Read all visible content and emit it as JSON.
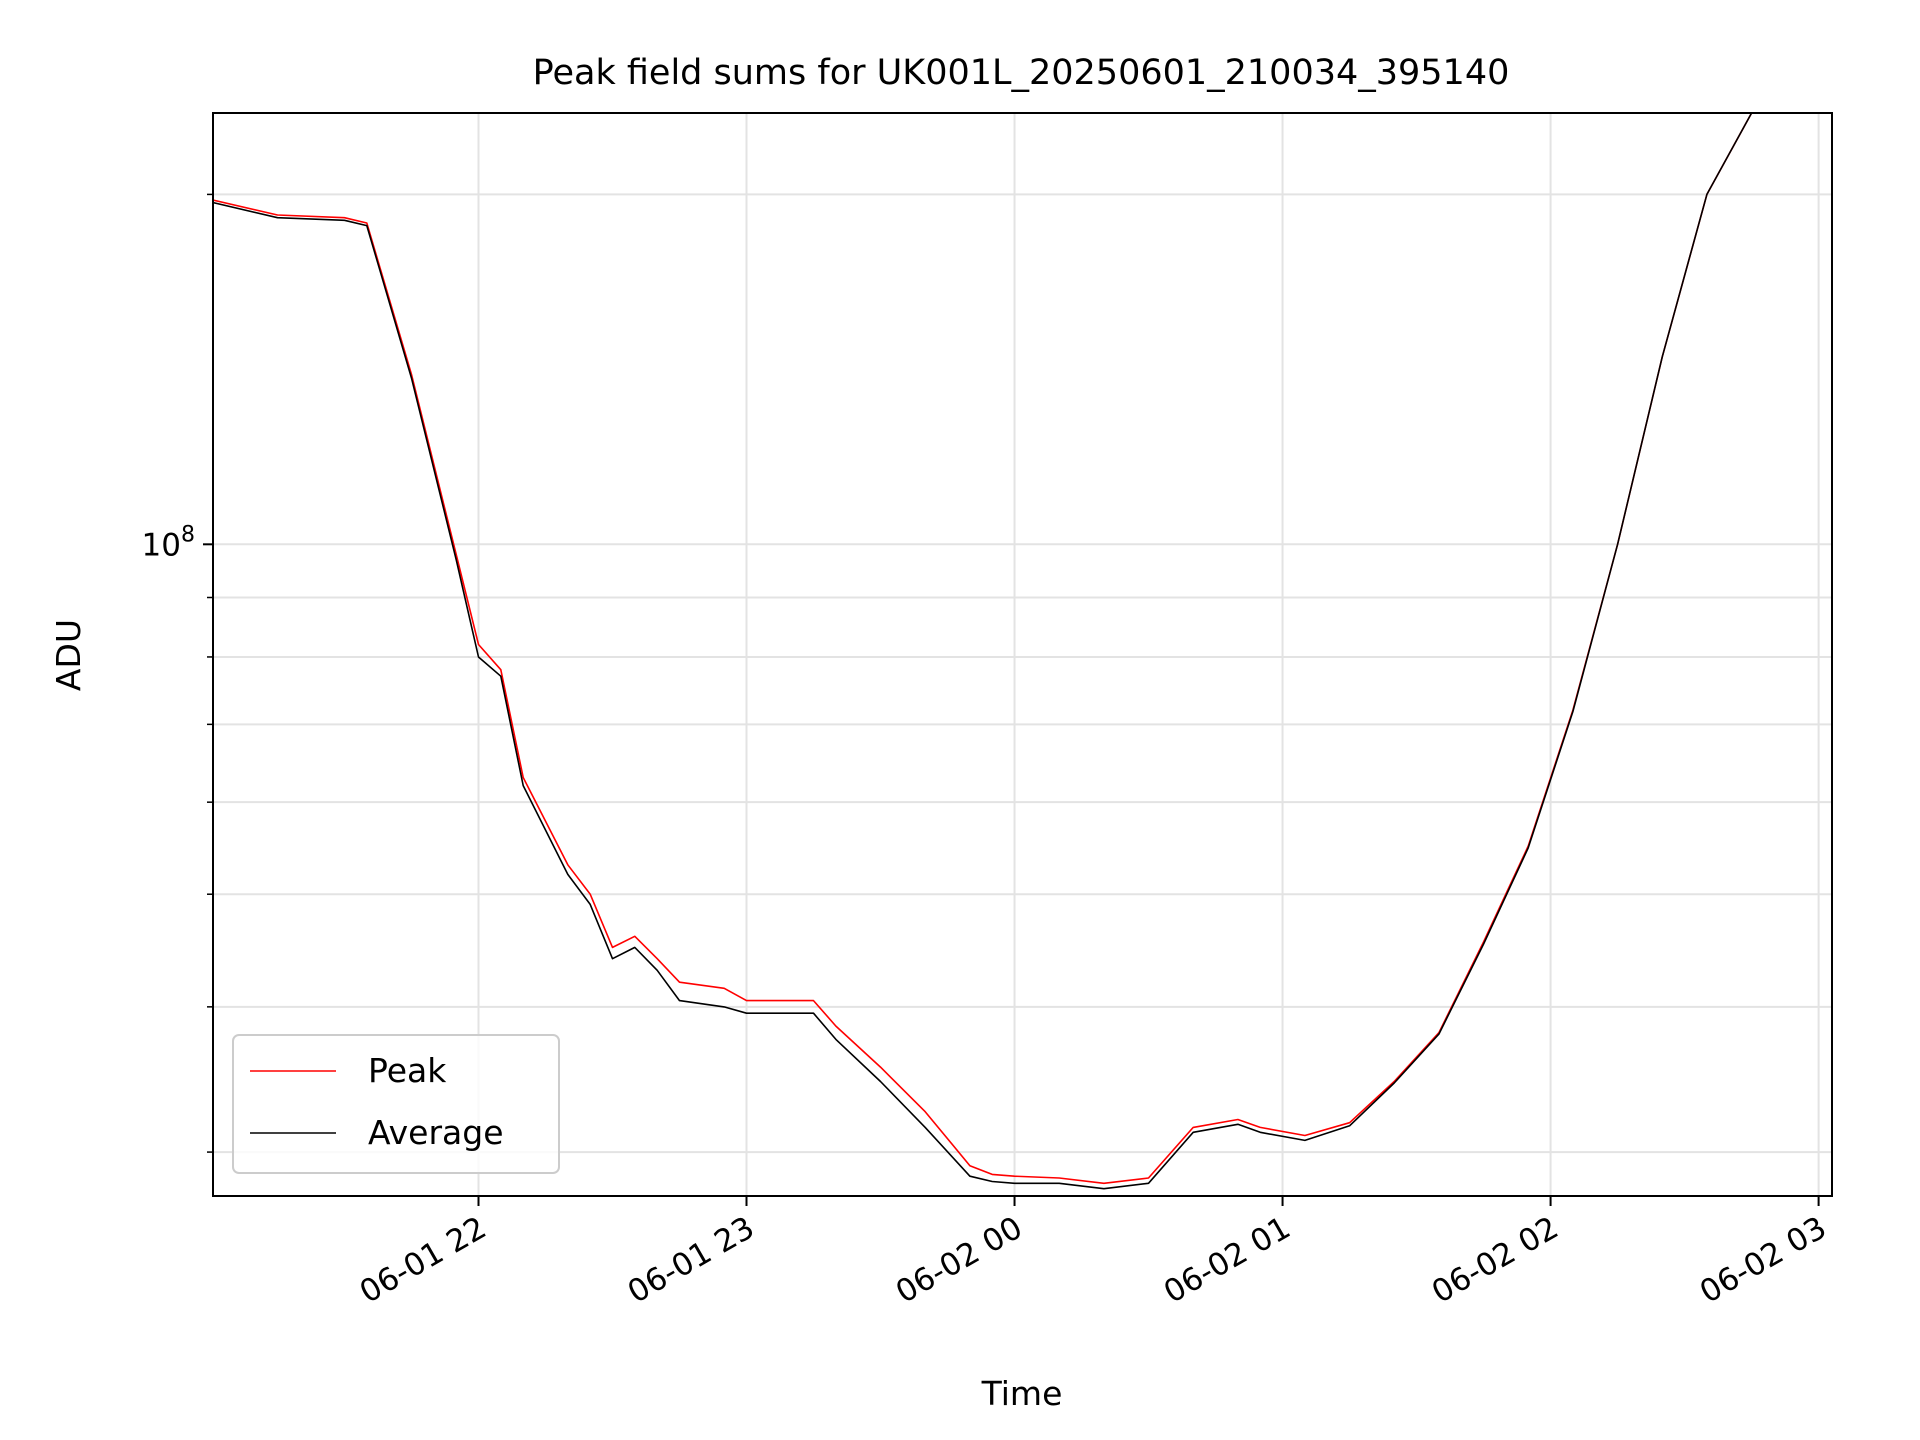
{
  "chart_data": {
    "type": "line",
    "title": "Peak field sums for UK001L_20250601_210034_395140",
    "xlabel": "Time",
    "ylabel": "ADU",
    "y_scale": "log",
    "ylim": [
      27500000,
      235000000
    ],
    "xlim": [
      "2025-06-01 21:00:34",
      "2025-06-02 03:03:00"
    ],
    "x_ticks": [
      "06-01 22",
      "06-01 23",
      "06-02 00",
      "06-02 01",
      "06-02 02",
      "06-02 03"
    ],
    "x_tick_times": [
      "2025-06-01 22:00",
      "2025-06-01 23:00",
      "2025-06-02 00:00",
      "2025-06-02 01:00",
      "2025-06-02 02:00",
      "2025-06-02 03:00"
    ],
    "y_major_tick_label": "10^8",
    "y_major_tick_value": 100000000,
    "y_minor_ticks": [
      30000000,
      40000000,
      50000000,
      60000000,
      70000000,
      80000000,
      90000000,
      200000000
    ],
    "grid": true,
    "legend_position": "lower-left",
    "series": [
      {
        "name": "Peak",
        "color": "#ff0000",
        "x": [
          "2025-06-01 21:00",
          "2025-06-01 21:15",
          "2025-06-01 21:30",
          "2025-06-01 21:35",
          "2025-06-01 21:45",
          "2025-06-01 21:55",
          "2025-06-01 22:00",
          "2025-06-01 22:05",
          "2025-06-01 22:10",
          "2025-06-01 22:20",
          "2025-06-01 22:25",
          "2025-06-01 22:30",
          "2025-06-01 22:35",
          "2025-06-01 22:40",
          "2025-06-01 22:45",
          "2025-06-01 22:55",
          "2025-06-01 23:00",
          "2025-06-01 23:15",
          "2025-06-01 23:20",
          "2025-06-01 23:30",
          "2025-06-01 23:40",
          "2025-06-01 23:50",
          "2025-06-01 23:55",
          "2025-06-02 00:00",
          "2025-06-02 00:10",
          "2025-06-02 00:20",
          "2025-06-02 00:30",
          "2025-06-02 00:40",
          "2025-06-02 00:50",
          "2025-06-02 00:55",
          "2025-06-02 01:05",
          "2025-06-02 01:15",
          "2025-06-02 01:25",
          "2025-06-02 01:35",
          "2025-06-02 01:45",
          "2025-06-02 01:55",
          "2025-06-02 02:05",
          "2025-06-02 02:15",
          "2025-06-02 02:25",
          "2025-06-02 02:35",
          "2025-06-02 02:45",
          "2025-06-02 02:55",
          "2025-06-02 03:02"
        ],
        "values": [
          198000000,
          192000000,
          191000000,
          189000000,
          140000000,
          98000000,
          82000000,
          78000000,
          63000000,
          53000000,
          50000000,
          45000000,
          46000000,
          44000000,
          42000000,
          41500000,
          40500000,
          40500000,
          38500000,
          35500000,
          32500000,
          29200000,
          28700000,
          28600000,
          28500000,
          28200000,
          28500000,
          31500000,
          32000000,
          31500000,
          31000000,
          31800000,
          34500000,
          38000000,
          45500000,
          55000000,
          72000000,
          100000000,
          145000000,
          200000000,
          235000000,
          235000000,
          235000000
        ]
      },
      {
        "name": "Average",
        "color": "#000000",
        "x": [
          "2025-06-01 21:00",
          "2025-06-01 21:15",
          "2025-06-01 21:30",
          "2025-06-01 21:35",
          "2025-06-01 21:45",
          "2025-06-01 21:55",
          "2025-06-01 22:00",
          "2025-06-01 22:05",
          "2025-06-01 22:10",
          "2025-06-01 22:20",
          "2025-06-01 22:25",
          "2025-06-01 22:30",
          "2025-06-01 22:35",
          "2025-06-01 22:40",
          "2025-06-01 22:45",
          "2025-06-01 22:55",
          "2025-06-01 23:00",
          "2025-06-01 23:15",
          "2025-06-01 23:20",
          "2025-06-01 23:30",
          "2025-06-01 23:40",
          "2025-06-01 23:50",
          "2025-06-01 23:55",
          "2025-06-02 00:00",
          "2025-06-02 00:10",
          "2025-06-02 00:20",
          "2025-06-02 00:30",
          "2025-06-02 00:40",
          "2025-06-02 00:50",
          "2025-06-02 00:55",
          "2025-06-02 01:05",
          "2025-06-02 01:15",
          "2025-06-02 01:25",
          "2025-06-02 01:35",
          "2025-06-02 01:45",
          "2025-06-02 01:55",
          "2025-06-02 02:05",
          "2025-06-02 02:15",
          "2025-06-02 02:25",
          "2025-06-02 02:35",
          "2025-06-02 02:45",
          "2025-06-02 02:55",
          "2025-06-02 03:02"
        ],
        "values": [
          197000000,
          191000000,
          190000000,
          188000000,
          139000000,
          97000000,
          80000000,
          77000000,
          62000000,
          52000000,
          49000000,
          44000000,
          45000000,
          43000000,
          40500000,
          40000000,
          39500000,
          39500000,
          37500000,
          34500000,
          31500000,
          28600000,
          28300000,
          28200000,
          28200000,
          27900000,
          28200000,
          31200000,
          31700000,
          31200000,
          30700000,
          31600000,
          34400000,
          37900000,
          45300000,
          54800000,
          71800000,
          100000000,
          145000000,
          200000000,
          235000000,
          235000000,
          235000000
        ]
      }
    ]
  }
}
